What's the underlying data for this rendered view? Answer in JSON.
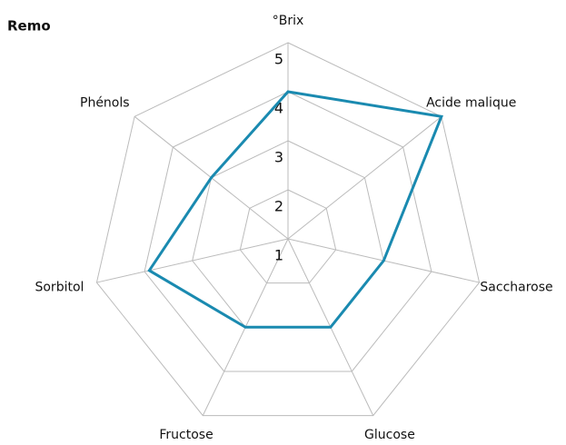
{
  "chart_data": {
    "type": "radar",
    "title": "Remo",
    "categories": [
      "°Brix",
      "Acide malique",
      "Saccharose",
      "Glucose",
      "Fructose",
      "Sorbitol",
      "Phénols"
    ],
    "series": [
      {
        "name": "Remo",
        "color": "#1a8ab0",
        "values": [
          4,
          5,
          3,
          3,
          3,
          3.9,
          3
        ]
      }
    ],
    "ylim": [
      1,
      5
    ],
    "yticks": [
      1,
      2,
      3,
      4,
      5
    ],
    "grid": true
  }
}
